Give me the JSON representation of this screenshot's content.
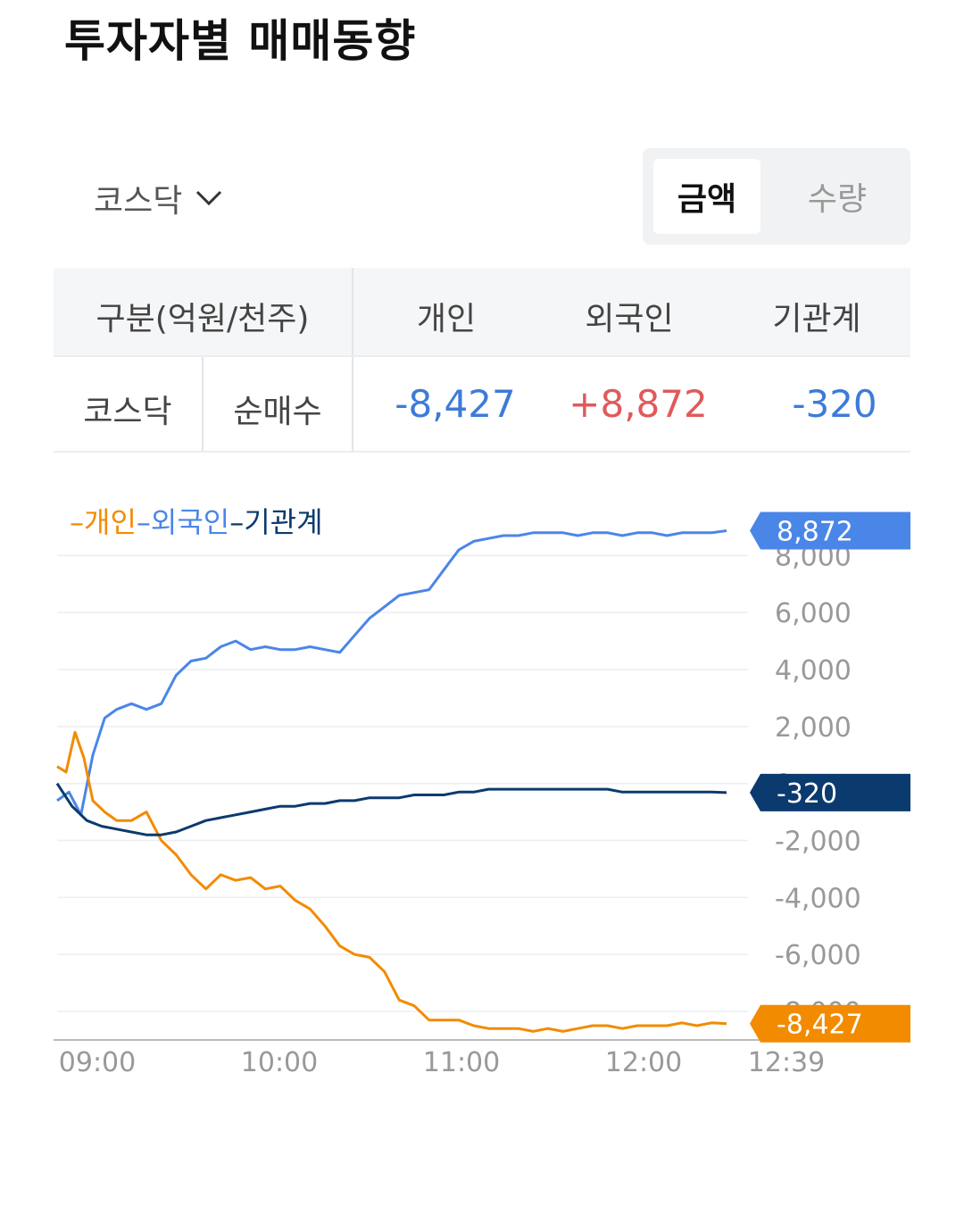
{
  "title": "투자자별 매매동향",
  "market_selector": {
    "label": "코스닥",
    "icon": "chevron-down-icon"
  },
  "segmented": {
    "amount": "금액",
    "quantity": "수량",
    "selected": "금액"
  },
  "table": {
    "header": {
      "category": "구분(억원/천주)",
      "individual": "개인",
      "foreign": "외국인",
      "institution": "기관계"
    },
    "row": {
      "market": "코스닥",
      "type": "순매수",
      "individual": "-8,427",
      "foreign": "+8,872",
      "institution": "-320"
    }
  },
  "colors": {
    "individual": "#f28b00",
    "foreign": "#4a86e8",
    "institution": "#0b3a6e",
    "positive": "#e05a5a",
    "negative": "#3d7bd9"
  },
  "legend": [
    {
      "label": "개인",
      "color": "#f28b00"
    },
    {
      "label": "외국인",
      "color": "#4a86e8"
    },
    {
      "label": "기관계",
      "color": "#0b3a6e"
    }
  ],
  "chart_data": {
    "type": "line",
    "x_ticks": [
      "09:00",
      "10:00",
      "11:00",
      "12:00",
      "12:39"
    ],
    "y_ticks": [
      "8,000",
      "6,000",
      "4,000",
      "2,000",
      "0",
      "-2,000",
      "-4,000",
      "-6,000",
      "-8,000"
    ],
    "ylim": [
      -9000,
      8700
    ],
    "grid": true,
    "legend_position": "top-left",
    "end_labels": {
      "foreign": "8,872",
      "institution": "-320",
      "individual": "-8,427"
    },
    "series": [
      {
        "name": "외국인",
        "color": "#4a86e8",
        "x": [
          0,
          4,
          8,
          12,
          16,
          20,
          25,
          30,
          35,
          40,
          45,
          50,
          55,
          60,
          65,
          70,
          75,
          80,
          85,
          90,
          95,
          100,
          105,
          110,
          115,
          120,
          125,
          130,
          135,
          140,
          145,
          150,
          155,
          160,
          165,
          170,
          175,
          180,
          185,
          190,
          195,
          200,
          205,
          210,
          215,
          220,
          225
        ],
        "values": [
          -600,
          -300,
          -1100,
          1000,
          2300,
          2600,
          2800,
          2600,
          2800,
          3800,
          4300,
          4400,
          4800,
          5000,
          4700,
          4800,
          4700,
          4700,
          4800,
          4700,
          4600,
          5200,
          5800,
          6200,
          6600,
          6700,
          6800,
          7500,
          8200,
          8500,
          8600,
          8700,
          8700,
          8800,
          8800,
          8800,
          8700,
          8800,
          8800,
          8700,
          8800,
          8800,
          8700,
          8800,
          8800,
          8800,
          8872
        ]
      },
      {
        "name": "개인",
        "color": "#f28b00",
        "x": [
          0,
          3,
          6,
          9,
          12,
          16,
          20,
          25,
          30,
          35,
          40,
          45,
          50,
          55,
          60,
          65,
          70,
          75,
          80,
          85,
          90,
          95,
          100,
          105,
          110,
          115,
          120,
          125,
          130,
          135,
          140,
          145,
          150,
          155,
          160,
          165,
          170,
          175,
          180,
          185,
          190,
          195,
          200,
          205,
          210,
          215,
          220,
          225
        ],
        "values": [
          600,
          400,
          1800,
          900,
          -600,
          -1000,
          -1300,
          -1300,
          -1000,
          -2000,
          -2500,
          -3200,
          -3700,
          -3200,
          -3400,
          -3300,
          -3700,
          -3600,
          -4100,
          -4400,
          -5000,
          -5700,
          -6000,
          -6100,
          -6600,
          -7600,
          -7800,
          -8300,
          -8300,
          -8300,
          -8500,
          -8600,
          -8600,
          -8600,
          -8700,
          -8600,
          -8700,
          -8600,
          -8500,
          -8500,
          -8600,
          -8500,
          -8500,
          -8500,
          -8400,
          -8500,
          -8400,
          -8427
        ]
      },
      {
        "name": "기관계",
        "color": "#0b3a6e",
        "x": [
          0,
          5,
          10,
          15,
          20,
          25,
          30,
          35,
          40,
          45,
          50,
          55,
          60,
          65,
          70,
          75,
          80,
          85,
          90,
          95,
          100,
          105,
          110,
          115,
          120,
          125,
          130,
          135,
          140,
          145,
          150,
          155,
          160,
          165,
          170,
          175,
          180,
          185,
          190,
          195,
          200,
          205,
          210,
          215,
          220,
          225
        ],
        "values": [
          0,
          -800,
          -1300,
          -1500,
          -1600,
          -1700,
          -1800,
          -1800,
          -1700,
          -1500,
          -1300,
          -1200,
          -1100,
          -1000,
          -900,
          -800,
          -800,
          -700,
          -700,
          -600,
          -600,
          -500,
          -500,
          -500,
          -400,
          -400,
          -400,
          -300,
          -300,
          -200,
          -200,
          -200,
          -200,
          -200,
          -200,
          -200,
          -200,
          -200,
          -300,
          -300,
          -300,
          -300,
          -300,
          -300,
          -300,
          -320
        ]
      }
    ]
  }
}
